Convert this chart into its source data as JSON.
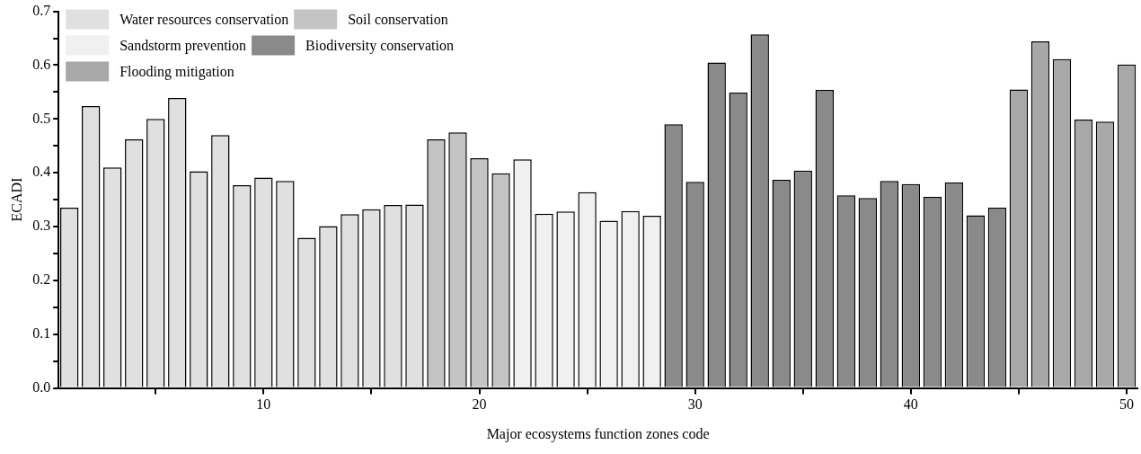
{
  "chart_data": {
    "type": "bar",
    "xlabel": "Major ecosystems function zones code",
    "ylabel": "ECADI",
    "xlim": [
      0.5,
      50.5
    ],
    "xticks": [
      {
        "value": 5,
        "label": null
      },
      10,
      {
        "value": 15,
        "label": null
      },
      20,
      {
        "value": 25,
        "label": null
      },
      30,
      {
        "value": 35,
        "label": null
      },
      40,
      {
        "value": 45,
        "label": null
      },
      50
    ],
    "ylim": [
      0,
      0.7
    ],
    "yticks": [
      {
        "value": 0,
        "label": "0.0"
      },
      {
        "value": 0.05,
        "label": null
      },
      0.1,
      {
        "value": 0.15,
        "label": null
      },
      0.2,
      {
        "value": 0.25,
        "label": null
      },
      0.3,
      {
        "value": 0.35,
        "label": null
      },
      0.4,
      {
        "value": 0.45,
        "label": null
      },
      0.5,
      {
        "value": 0.55,
        "label": null
      },
      0.6,
      {
        "value": 0.65,
        "label": null
      },
      0.7
    ],
    "grid": false,
    "legend": "top left",
    "series": [
      {
        "name": "Water resources conservation",
        "color": "#e0e0e0",
        "x": [
          1,
          2,
          3,
          4,
          5,
          6,
          7,
          8,
          9,
          10,
          11,
          12,
          13,
          14,
          15,
          16,
          17
        ],
        "values": [
          0.335,
          0.524,
          0.41,
          0.462,
          0.5,
          0.539,
          0.403,
          0.47,
          0.377,
          0.391,
          0.385,
          0.279,
          0.301,
          0.323,
          0.332,
          0.34,
          0.341
        ]
      },
      {
        "name": "Soil conservation",
        "color": "#c4c4c4",
        "x": [
          18,
          19,
          20,
          21
        ],
        "values": [
          0.462,
          0.475,
          0.427,
          0.399
        ]
      },
      {
        "name": "Sandstorm prevention",
        "color": "#f0f0f0",
        "x": [
          22,
          23,
          24,
          25,
          26,
          27,
          28
        ],
        "values": [
          0.425,
          0.324,
          0.328,
          0.364,
          0.311,
          0.329,
          0.32
        ]
      },
      {
        "name": "Biodiversity conservation",
        "color": "#8a8a8a",
        "x": [
          29,
          30,
          31,
          32,
          33,
          34,
          35,
          36,
          37,
          38,
          39,
          40,
          41,
          42,
          43,
          44
        ],
        "values": [
          0.49,
          0.383,
          0.605,
          0.549,
          0.657,
          0.387,
          0.404,
          0.554,
          0.358,
          0.353,
          0.385,
          0.379,
          0.355,
          0.382,
          0.321,
          0.335
        ]
      },
      {
        "name": "Flooding mitigation",
        "color": "#a8a8a8",
        "x": [
          45,
          46,
          47,
          48,
          49,
          50
        ],
        "values": [
          0.555,
          0.644,
          0.611,
          0.499,
          0.495,
          0.601
        ]
      }
    ]
  }
}
